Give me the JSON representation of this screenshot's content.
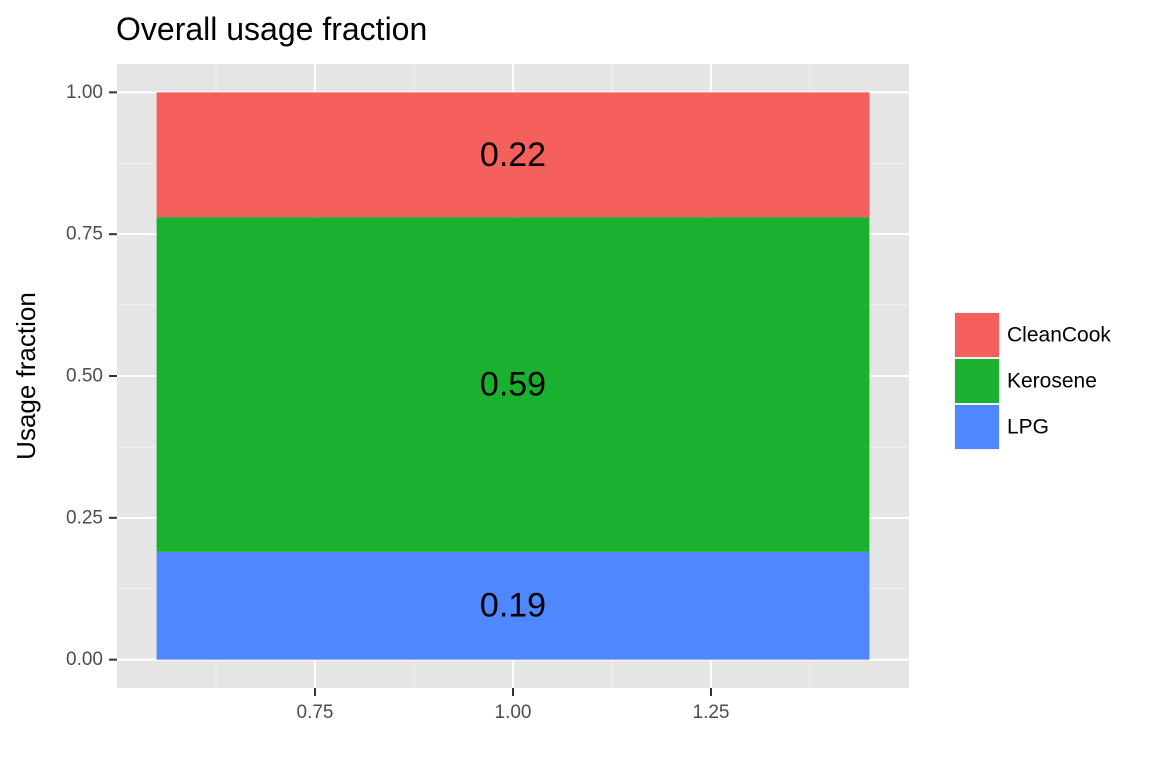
{
  "chart_data": {
    "type": "bar",
    "stacked": true,
    "title": "Overall usage fraction",
    "xlabel": "",
    "ylabel": "Usage fraction",
    "x": [
      1.0
    ],
    "xlim": [
      0.5,
      1.5
    ],
    "ylim": [
      -0.05,
      1.05
    ],
    "bar_width": 0.9,
    "x_ticks": [
      0.75,
      1.0,
      1.25
    ],
    "x_tick_labels": [
      "0.75",
      "1.00",
      "1.25"
    ],
    "y_ticks": [
      0.0,
      0.25,
      0.5,
      0.75,
      1.0
    ],
    "y_tick_labels": [
      "0.00",
      "0.25",
      "0.50",
      "0.75",
      "1.00"
    ],
    "grid": true,
    "legend_position": "right",
    "series": [
      {
        "name": "LPG",
        "values": [
          0.19
        ],
        "label": "0.19",
        "color": "#4f87ff"
      },
      {
        "name": "Kerosene",
        "values": [
          0.59
        ],
        "label": "0.59",
        "color": "#19b12f"
      },
      {
        "name": "CleanCook",
        "values": [
          0.22
        ],
        "label": "0.22",
        "color": "#f5605d"
      }
    ],
    "legend_order": [
      "CleanCook",
      "Kerosene",
      "LPG"
    ]
  }
}
